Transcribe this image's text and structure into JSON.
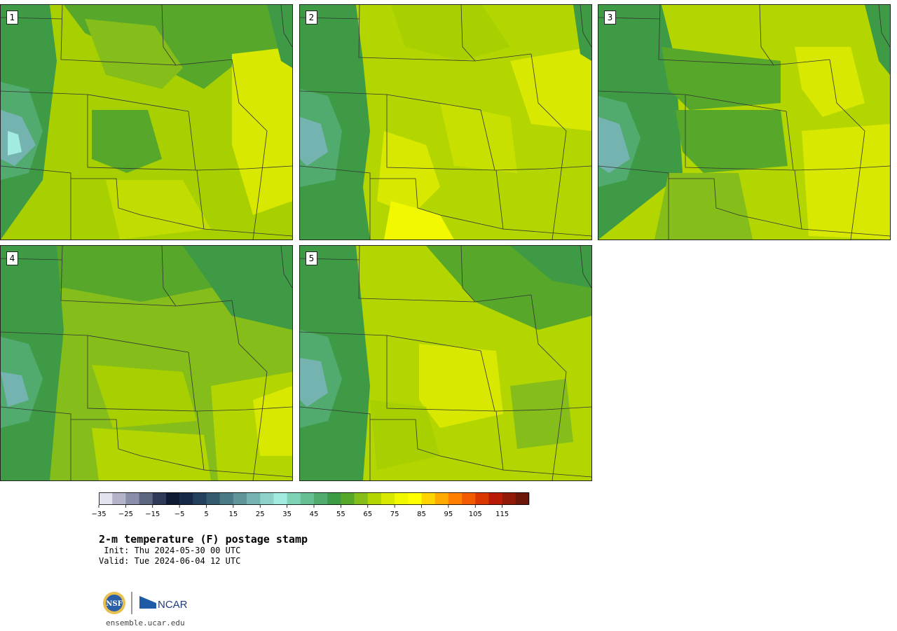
{
  "panels": [
    {
      "label": "1"
    },
    {
      "label": "2"
    },
    {
      "label": "3"
    },
    {
      "label": "4"
    },
    {
      "label": "5"
    }
  ],
  "colorbar": {
    "colors": [
      "#e3e3ee",
      "#b3b3c9",
      "#8a8ea8",
      "#5d6680",
      "#2f3a58",
      "#0f1a33",
      "#162a48",
      "#23415c",
      "#345a6e",
      "#4a7a85",
      "#5e969a",
      "#75b3b1",
      "#8fd1cb",
      "#a2ebe0",
      "#7dd3b3",
      "#65bf93",
      "#52ab6e",
      "#3f9a45",
      "#57a82a",
      "#85be1a",
      "#b3d600",
      "#d8e800",
      "#f2f800",
      "#ffff00",
      "#ffd400",
      "#ffaa00",
      "#ff8000",
      "#f25a00",
      "#d93600",
      "#b81a05",
      "#8f1a08",
      "#6b1408"
    ],
    "ticks": [
      "−35",
      "−25",
      "−15",
      "−5",
      "5",
      "15",
      "25",
      "35",
      "45",
      "55",
      "65",
      "75",
      "85",
      "95",
      "105",
      "115"
    ]
  },
  "title": "2-m temperature (F) postage stamp",
  "init": " Init: Thu 2024-05-30 00 UTC",
  "valid": "Valid: Tue 2024-06-04 12 UTC",
  "logo": {
    "left": "NSF",
    "right": "NCAR"
  },
  "site": "ensemble.ucar.edu"
}
